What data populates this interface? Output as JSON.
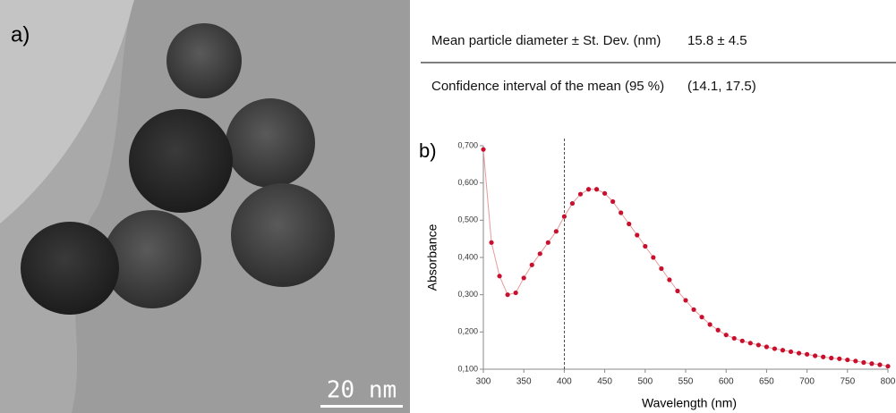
{
  "panel_a": {
    "label": "a)",
    "scale_bar": "20 nm"
  },
  "table": {
    "rows": [
      [
        "Mean particle diameter ± St. Dev. (nm)",
        "15.8 ± 4.5"
      ],
      [
        "Confidence interval of the mean (95 %)",
        "(14.1, 17.5)"
      ]
    ]
  },
  "chart_data": {
    "type": "line",
    "panel_label": "b)",
    "x_label": "Wavelength (nm)",
    "y_label": "Absorbance",
    "x": [
      300,
      310,
      320,
      330,
      340,
      350,
      360,
      370,
      380,
      390,
      400,
      410,
      420,
      430,
      440,
      450,
      460,
      470,
      480,
      490,
      500,
      510,
      520,
      530,
      540,
      550,
      560,
      570,
      580,
      590,
      600,
      610,
      620,
      630,
      640,
      650,
      660,
      670,
      680,
      690,
      700,
      710,
      720,
      730,
      740,
      750,
      760,
      770,
      780,
      790,
      800
    ],
    "series": [
      {
        "color": "#c8102e",
        "line_color": "#e89a9a",
        "values": [
          0.69,
          0.44,
          0.35,
          0.3,
          0.305,
          0.345,
          0.38,
          0.41,
          0.44,
          0.47,
          0.51,
          0.545,
          0.57,
          0.583,
          0.583,
          0.572,
          0.55,
          0.52,
          0.49,
          0.46,
          0.43,
          0.4,
          0.37,
          0.34,
          0.31,
          0.285,
          0.26,
          0.24,
          0.22,
          0.205,
          0.192,
          0.183,
          0.176,
          0.17,
          0.165,
          0.16,
          0.155,
          0.151,
          0.147,
          0.143,
          0.14,
          0.136,
          0.133,
          0.13,
          0.128,
          0.125,
          0.122,
          0.118,
          0.115,
          0.112,
          0.108
        ]
      }
    ],
    "xlim": [
      300,
      800
    ],
    "xticks": [
      300,
      350,
      400,
      450,
      500,
      550,
      600,
      650,
      700,
      750,
      800
    ],
    "ylim": [
      0.1,
      0.7
    ],
    "yticks": [
      {
        "value": 0.1,
        "label": "0,100"
      },
      {
        "value": 0.2,
        "label": "0,200"
      },
      {
        "value": 0.3,
        "label": "0,300"
      },
      {
        "value": 0.4,
        "label": "0,400"
      },
      {
        "value": 0.5,
        "label": "0,500"
      },
      {
        "value": 0.6,
        "label": "0,600"
      },
      {
        "value": 0.7,
        "label": "0,700"
      }
    ],
    "vline": 400
  }
}
